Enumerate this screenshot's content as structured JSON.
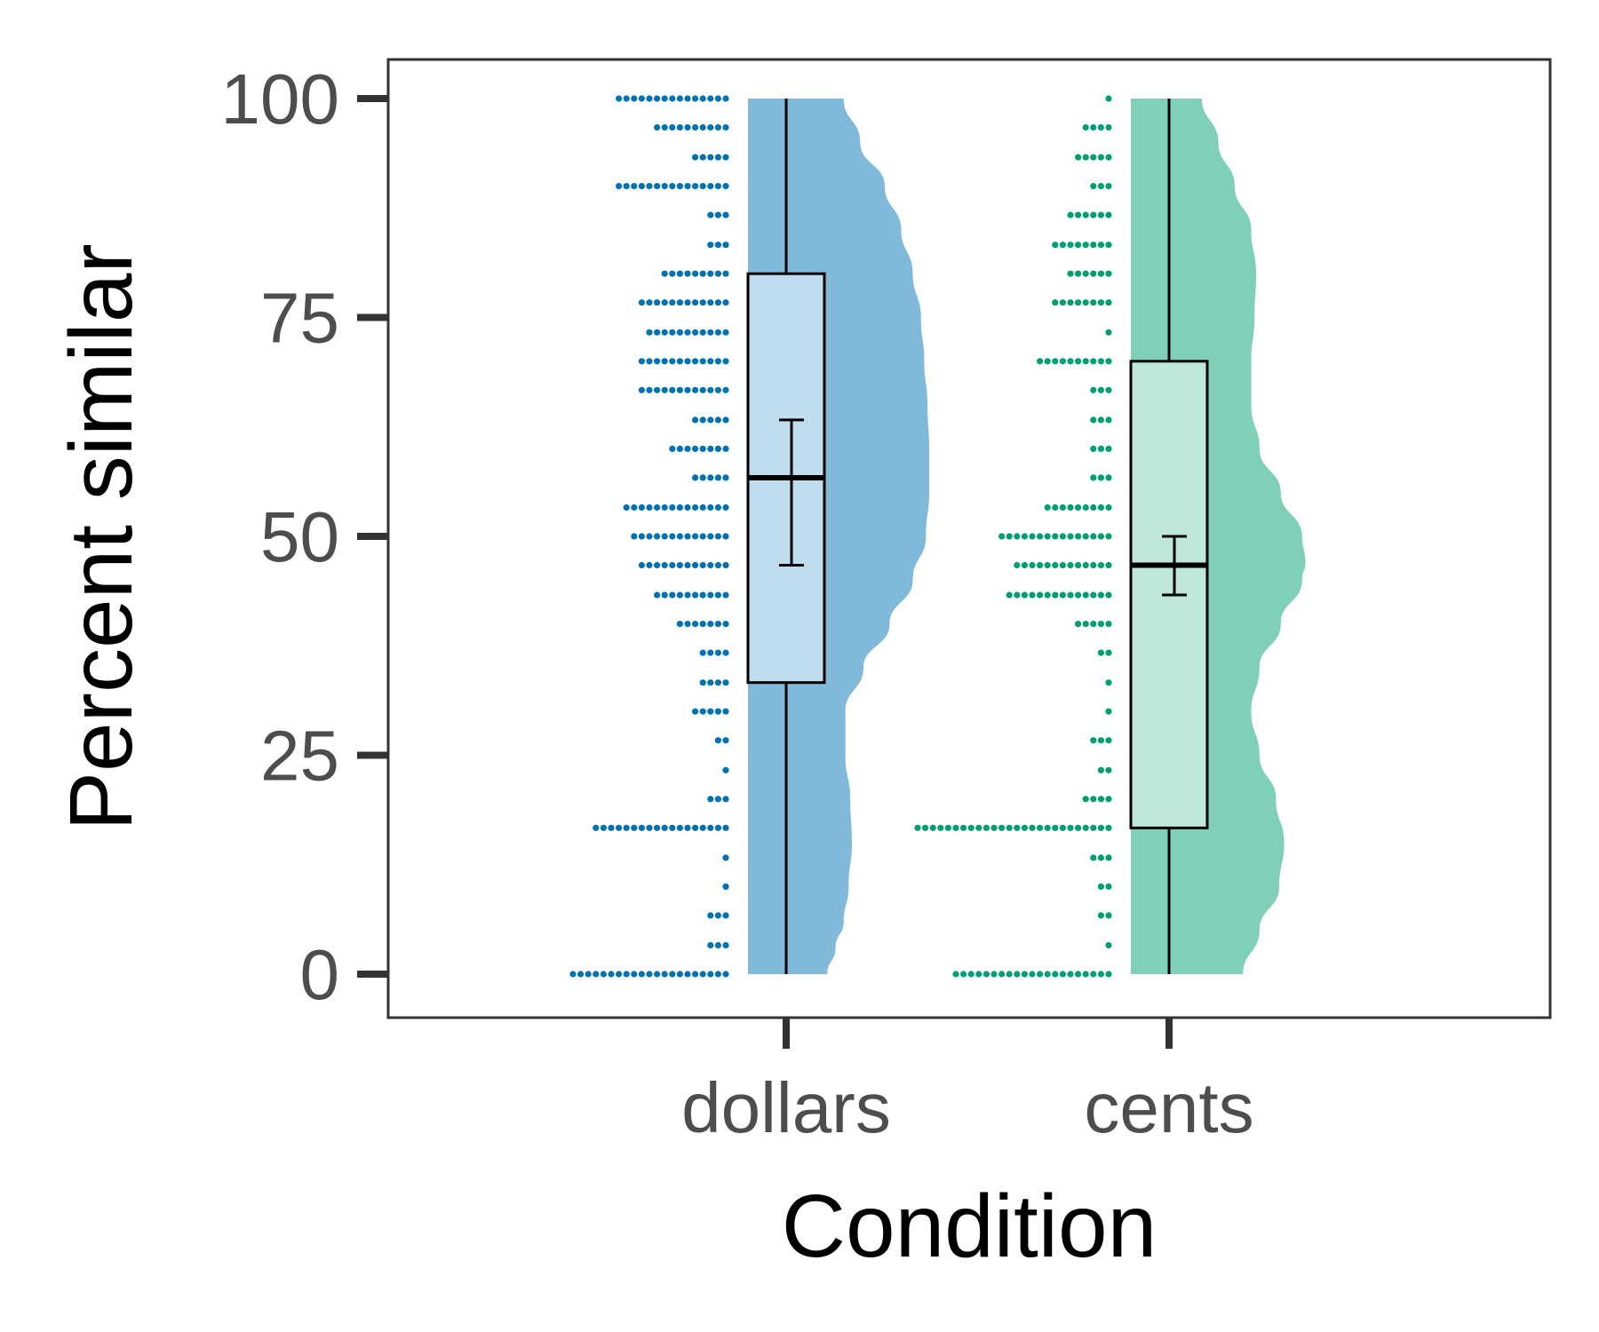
{
  "chart_data": {
    "type": "raincloud",
    "xlabel": "Condition",
    "ylabel": "Percent similar",
    "ylim": [
      -4.7,
      105
    ],
    "yticks": [
      0,
      25,
      50,
      75,
      100
    ],
    "categories": [
      "dollars",
      "cents"
    ],
    "grid": false,
    "series": [
      {
        "name": "dollars",
        "colors": {
          "dots": "#0072B2",
          "cloud": "#80B9D9",
          "box": "#BFDDEE"
        },
        "box": {
          "whisker_low": 0,
          "q1": 33.3,
          "median": 56.7,
          "q3": 80,
          "whisker_high": 100
        },
        "mean_ci": {
          "low": 46.7,
          "high": 63.3
        },
        "density": [
          [
            0,
            0.25
          ],
          [
            3,
            0.3
          ],
          [
            6,
            0.35
          ],
          [
            10,
            0.38
          ],
          [
            15,
            0.4
          ],
          [
            20,
            0.39
          ],
          [
            25,
            0.36
          ],
          [
            30,
            0.36
          ],
          [
            35,
            0.47
          ],
          [
            40,
            0.63
          ],
          [
            45,
            0.77
          ],
          [
            50,
            0.85
          ],
          [
            55,
            0.87
          ],
          [
            60,
            0.87
          ],
          [
            65,
            0.86
          ],
          [
            70,
            0.84
          ],
          [
            75,
            0.82
          ],
          [
            80,
            0.77
          ],
          [
            85,
            0.7
          ],
          [
            90,
            0.6
          ],
          [
            95,
            0.45
          ],
          [
            100,
            0.35
          ]
        ],
        "dots": [
          [
            0,
            21
          ],
          [
            3.3,
            3
          ],
          [
            6.7,
            3
          ],
          [
            10,
            1
          ],
          [
            13.3,
            1
          ],
          [
            16.7,
            18
          ],
          [
            20,
            3
          ],
          [
            23.3,
            1
          ],
          [
            26.7,
            2
          ],
          [
            30,
            5
          ],
          [
            33.3,
            4
          ],
          [
            36.7,
            4
          ],
          [
            40,
            7
          ],
          [
            43.3,
            10
          ],
          [
            46.7,
            12
          ],
          [
            50,
            13
          ],
          [
            53.3,
            14
          ],
          [
            56.7,
            5
          ],
          [
            60,
            8
          ],
          [
            63.3,
            5
          ],
          [
            66.7,
            12
          ],
          [
            70,
            12
          ],
          [
            73.3,
            11
          ],
          [
            76.7,
            12
          ],
          [
            80,
            9
          ],
          [
            83.3,
            3
          ],
          [
            86.7,
            3
          ],
          [
            90,
            15
          ],
          [
            93.3,
            5
          ],
          [
            96.7,
            10
          ],
          [
            100,
            15
          ]
        ]
      },
      {
        "name": "cents",
        "colors": {
          "dots": "#009E73",
          "cloud": "#80D0B9",
          "box": "#BFE7DC"
        },
        "box": {
          "whisker_low": 0,
          "q1": 16.7,
          "median": 46.7,
          "q3": 70,
          "whisker_high": 100
        },
        "mean_ci": {
          "low": 43.3,
          "high": 50
        },
        "density": [
          [
            0,
            0.45
          ],
          [
            5,
            0.55
          ],
          [
            10,
            0.67
          ],
          [
            15,
            0.7
          ],
          [
            20,
            0.65
          ],
          [
            25,
            0.55
          ],
          [
            30,
            0.5
          ],
          [
            35,
            0.55
          ],
          [
            40,
            0.68
          ],
          [
            45,
            0.81
          ],
          [
            47,
            0.83
          ],
          [
            50,
            0.81
          ],
          [
            55,
            0.68
          ],
          [
            60,
            0.55
          ],
          [
            65,
            0.5
          ],
          [
            70,
            0.5
          ],
          [
            75,
            0.52
          ],
          [
            80,
            0.53
          ],
          [
            85,
            0.5
          ],
          [
            90,
            0.4
          ],
          [
            95,
            0.3
          ],
          [
            100,
            0.2
          ]
        ]
      }
    ]
  }
}
